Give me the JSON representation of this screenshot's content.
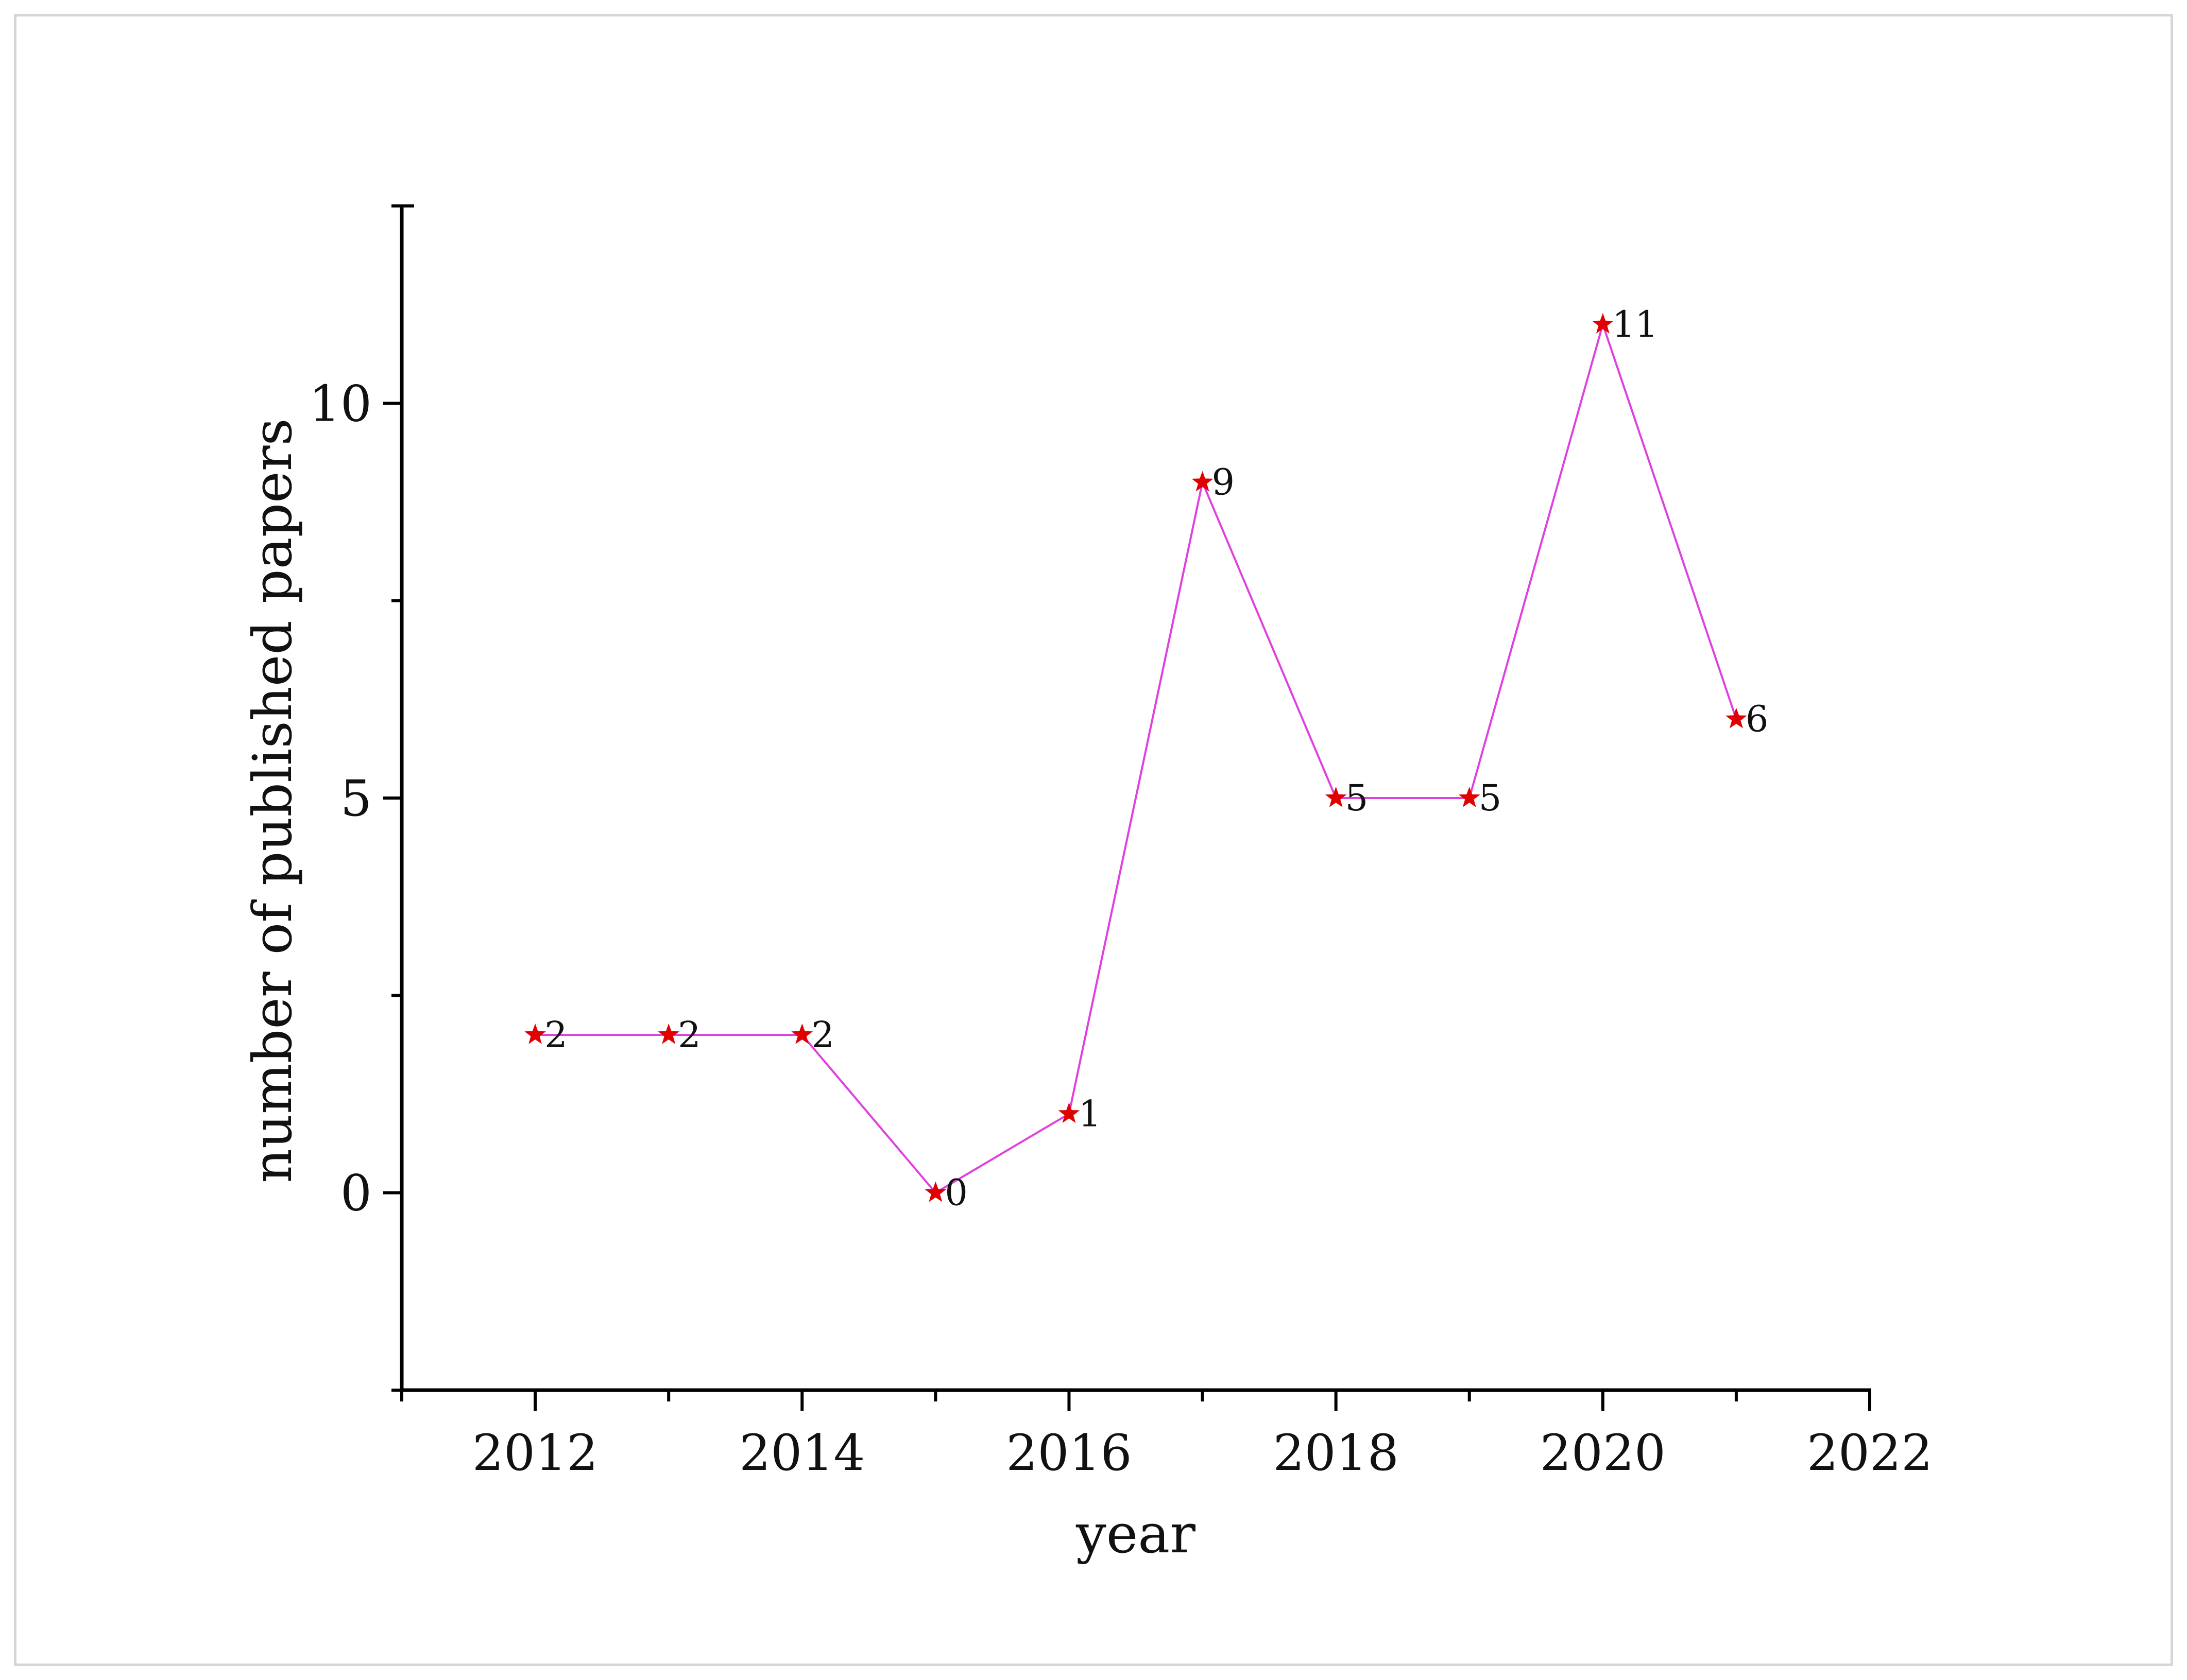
{
  "chart_data": {
    "type": "line",
    "title": "",
    "xlabel": "year",
    "ylabel": "number of published papers",
    "x": [
      2012,
      2013,
      2014,
      2015,
      2016,
      2017,
      2018,
      2019,
      2020,
      2021
    ],
    "series": [
      {
        "values": [
          2,
          2,
          2,
          0,
          1,
          9,
          5,
          5,
          11,
          6
        ]
      }
    ],
    "xlim": [
      2011,
      2022
    ],
    "ylim": [
      -2.5,
      12.5
    ],
    "xticks": [
      2012,
      2014,
      2016,
      2018,
      2020,
      2022
    ],
    "yticks": [
      0,
      5,
      10
    ],
    "grid": false,
    "legend": "none",
    "line_color": "#e040e0",
    "marker_color": "#e00000",
    "marker": "star"
  }
}
